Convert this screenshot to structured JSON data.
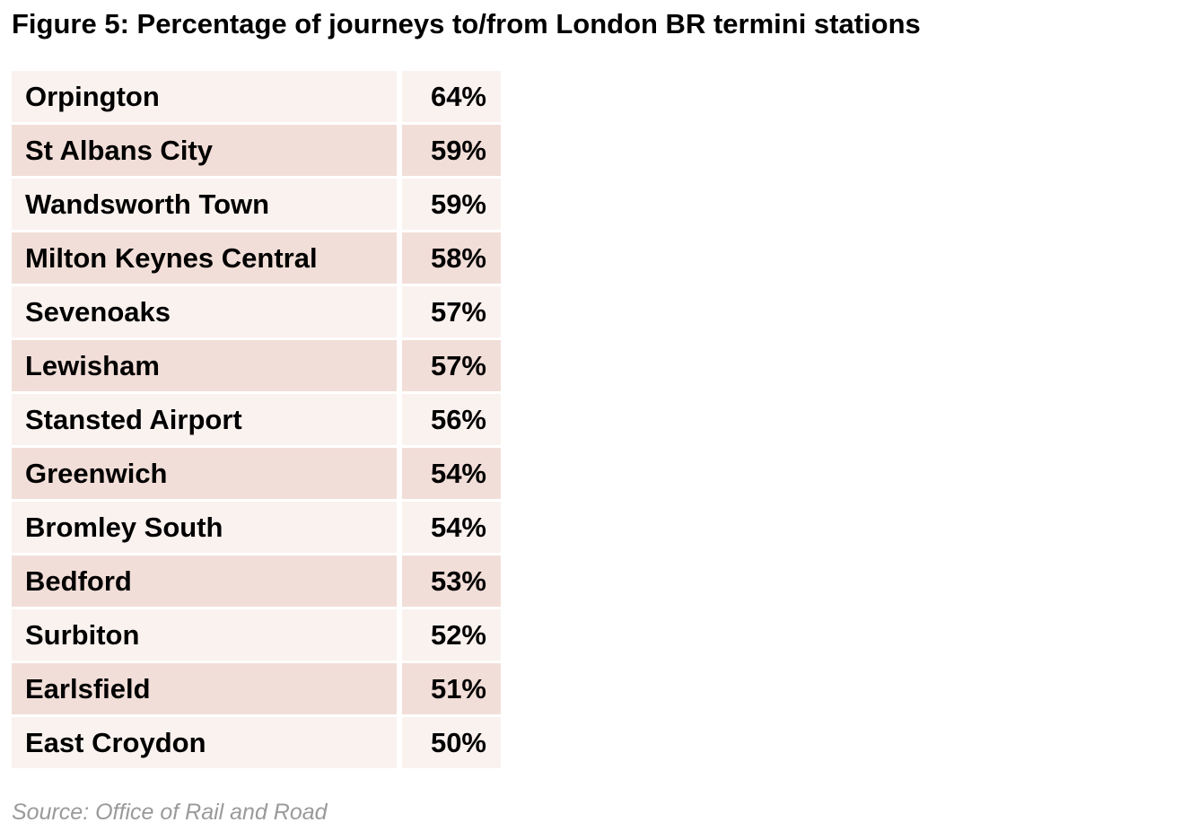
{
  "title": "Figure 5: Percentage of journeys to/from London BR termini stations",
  "source_note": "Source: Office of Rail and Road",
  "colors": {
    "background": "#ffffff",
    "row_light": "#faf2ef",
    "row_dark": "#f2ded8",
    "text": "#000000",
    "source_text": "#9a9a9a"
  },
  "chart_data": {
    "type": "table",
    "title": "Figure 5: Percentage of journeys to/from London BR termini stations",
    "source": "Source: Office of Rail and Road",
    "legend_position": "none",
    "grid": false,
    "rows": [
      {
        "station": "Orpington",
        "percentage": "64%",
        "value": 64
      },
      {
        "station": "St Albans City",
        "percentage": "59%",
        "value": 59
      },
      {
        "station": "Wandsworth Town",
        "percentage": "59%",
        "value": 59
      },
      {
        "station": "Milton Keynes Central",
        "percentage": "58%",
        "value": 58
      },
      {
        "station": "Sevenoaks",
        "percentage": "57%",
        "value": 57
      },
      {
        "station": "Lewisham",
        "percentage": "57%",
        "value": 57
      },
      {
        "station": "Stansted Airport",
        "percentage": "56%",
        "value": 56
      },
      {
        "station": "Greenwich",
        "percentage": "54%",
        "value": 54
      },
      {
        "station": "Bromley South",
        "percentage": "54%",
        "value": 54
      },
      {
        "station": "Bedford",
        "percentage": "53%",
        "value": 53
      },
      {
        "station": "Surbiton",
        "percentage": "52%",
        "value": 52
      },
      {
        "station": "Earlsfield",
        "percentage": "51%",
        "value": 51
      },
      {
        "station": "East Croydon",
        "percentage": "50%",
        "value": 50
      }
    ]
  }
}
